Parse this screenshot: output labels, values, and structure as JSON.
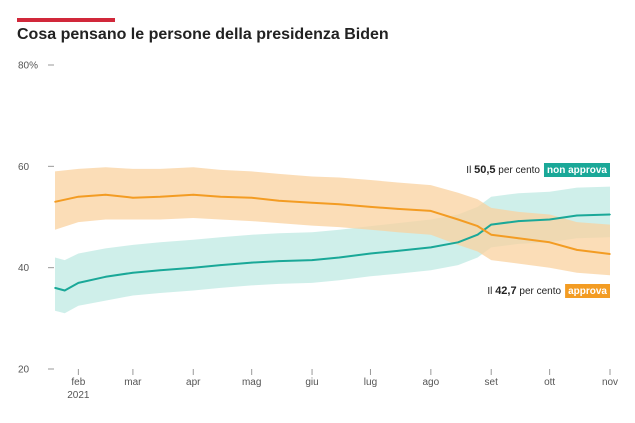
{
  "header": {
    "title": "Cosa pensano le persone della presidenza Biden"
  },
  "colors": {
    "accent": "#d1283a",
    "approve": "#f39c23",
    "approve_band": "#f9d29f",
    "disapprove": "#1aa898",
    "disapprove_band": "#c7ece6"
  },
  "chart_data": {
    "type": "line",
    "title": "Cosa pensano le persone della presidenza Biden",
    "y_unit": "%",
    "ylim": [
      20,
      80
    ],
    "yticks": [
      {
        "value": 80,
        "label": "80%"
      },
      {
        "value": 60,
        "label": "60"
      },
      {
        "value": 40,
        "label": "40"
      },
      {
        "value": 20,
        "label": "20"
      }
    ],
    "xlim": [
      "2021-01-20",
      "2021-11-01"
    ],
    "xticks": [
      {
        "date": "2021-02-01",
        "label": "feb",
        "sublabel": "2021"
      },
      {
        "date": "2021-03-01",
        "label": "mar",
        "sublabel": ""
      },
      {
        "date": "2021-04-01",
        "label": "apr",
        "sublabel": ""
      },
      {
        "date": "2021-05-01",
        "label": "mag",
        "sublabel": ""
      },
      {
        "date": "2021-06-01",
        "label": "giu",
        "sublabel": ""
      },
      {
        "date": "2021-07-01",
        "label": "lug",
        "sublabel": ""
      },
      {
        "date": "2021-08-01",
        "label": "ago",
        "sublabel": ""
      },
      {
        "date": "2021-09-01",
        "label": "set",
        "sublabel": ""
      },
      {
        "date": "2021-10-01",
        "label": "ott",
        "sublabel": ""
      },
      {
        "date": "2021-11-01",
        "label": "nov",
        "sublabel": ""
      }
    ],
    "grid": false,
    "series": [
      {
        "key": "approva",
        "name": "approva",
        "x": [
          "2021-01-20",
          "2021-02-01",
          "2021-02-15",
          "2021-03-01",
          "2021-03-15",
          "2021-04-01",
          "2021-04-15",
          "2021-05-01",
          "2021-05-15",
          "2021-06-01",
          "2021-06-15",
          "2021-07-01",
          "2021-07-15",
          "2021-08-01",
          "2021-08-15",
          "2021-08-25",
          "2021-09-01",
          "2021-09-15",
          "2021-10-01",
          "2021-10-15",
          "2021-11-01"
        ],
        "values": [
          53.0,
          54.0,
          54.4,
          53.8,
          54.0,
          54.4,
          54.0,
          53.8,
          53.2,
          52.8,
          52.5,
          52.0,
          51.6,
          51.2,
          49.5,
          48.2,
          46.5,
          45.8,
          45.0,
          43.5,
          42.7
        ],
        "band_low": [
          47.5,
          49.0,
          49.5,
          49.5,
          49.5,
          49.8,
          49.5,
          49.2,
          48.8,
          48.3,
          48.0,
          47.5,
          47.0,
          46.5,
          44.5,
          43.2,
          41.5,
          40.8,
          40.0,
          39.0,
          38.5
        ],
        "band_high": [
          59.0,
          59.5,
          59.8,
          59.5,
          59.5,
          59.8,
          59.3,
          59.0,
          58.5,
          58.0,
          57.8,
          57.3,
          56.8,
          56.3,
          54.8,
          53.5,
          51.8,
          51.0,
          50.5,
          49.0,
          48.5
        ]
      },
      {
        "key": "non_approva",
        "name": "non approva",
        "x": [
          "2021-01-20",
          "2021-01-25",
          "2021-02-01",
          "2021-02-15",
          "2021-03-01",
          "2021-03-15",
          "2021-04-01",
          "2021-04-15",
          "2021-05-01",
          "2021-05-15",
          "2021-06-01",
          "2021-06-15",
          "2021-07-01",
          "2021-07-15",
          "2021-08-01",
          "2021-08-15",
          "2021-08-25",
          "2021-09-01",
          "2021-09-15",
          "2021-10-01",
          "2021-10-15",
          "2021-11-01"
        ],
        "values": [
          36.0,
          35.5,
          37.0,
          38.2,
          39.0,
          39.5,
          40.0,
          40.5,
          41.0,
          41.3,
          41.5,
          42.0,
          42.8,
          43.3,
          44.0,
          45.0,
          46.5,
          48.5,
          49.2,
          49.5,
          50.3,
          50.5
        ],
        "band_low": [
          31.5,
          31.0,
          32.5,
          33.5,
          34.5,
          35.0,
          35.5,
          36.0,
          36.5,
          36.8,
          37.0,
          37.5,
          38.3,
          38.8,
          39.5,
          40.5,
          42.0,
          44.0,
          44.7,
          45.0,
          45.8,
          46.0
        ],
        "band_high": [
          42.0,
          41.5,
          42.8,
          43.8,
          44.5,
          45.0,
          45.5,
          46.0,
          46.5,
          46.8,
          47.0,
          47.5,
          48.2,
          48.8,
          49.5,
          50.5,
          52.0,
          54.0,
          54.7,
          55.0,
          55.8,
          56.0
        ]
      }
    ],
    "annotations": [
      {
        "series": "non_approva",
        "prefix": "Il",
        "value": "50,5",
        "unit": "per cento",
        "badge": "non approva"
      },
      {
        "series": "approva",
        "prefix": "Il",
        "value": "42,7",
        "unit": "per cento",
        "badge": "approva"
      }
    ]
  }
}
